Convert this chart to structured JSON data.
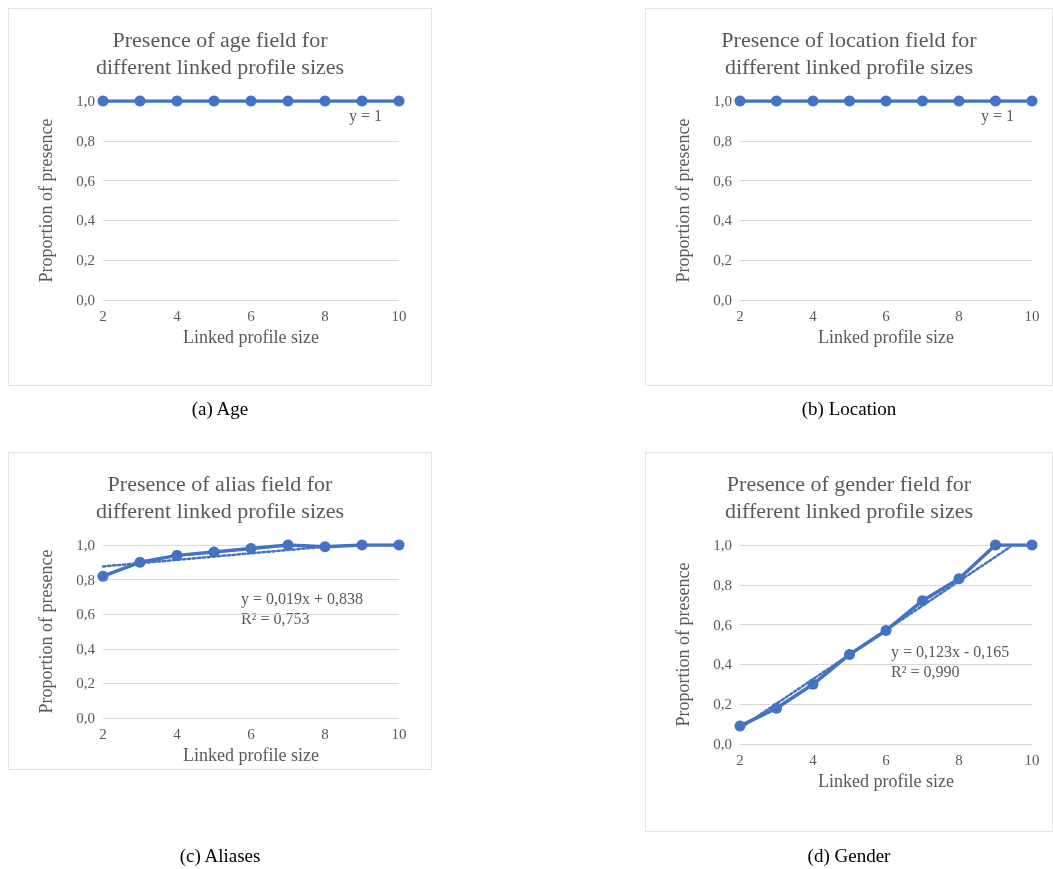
{
  "chart_data": [
    {
      "type": "line",
      "title": "Presence of age field for\ndifferent linked profile sizes",
      "xlabel": "Linked profile size",
      "ylabel": "Proportion of presence",
      "x": [
        2,
        3,
        4,
        5,
        6,
        7,
        8,
        9,
        10
      ],
      "series": [
        {
          "color": "#4472c4",
          "values": [
            1,
            1,
            1,
            1,
            1,
            1,
            1,
            1,
            1
          ]
        }
      ],
      "xlim": [
        2,
        10
      ],
      "xticks": [
        2,
        4,
        6,
        8,
        10
      ],
      "ylim": [
        0,
        1
      ],
      "yticks": [
        {
          "value": 0,
          "label": "0,0"
        },
        {
          "value": 0.2,
          "label": "0,2"
        },
        {
          "value": 0.4,
          "label": "0,4"
        },
        {
          "value": 0.6,
          "label": "0,6"
        },
        {
          "value": 0.8,
          "label": "0,8"
        },
        {
          "value": 1,
          "label": "1,0"
        }
      ],
      "grid": "y",
      "marker": "circle",
      "annotations": [
        "y = 1",
        "(a) Age"
      ]
    },
    {
      "type": "line",
      "title": "Presence of location field for\ndifferent linked profile sizes",
      "xlabel": "Linked profile size",
      "ylabel": "Proportion of presence",
      "x": [
        2,
        3,
        4,
        5,
        6,
        7,
        8,
        9,
        10
      ],
      "series": [
        {
          "color": "#4472c4",
          "values": [
            1,
            1,
            1,
            1,
            1,
            1,
            1,
            1,
            1
          ]
        }
      ],
      "xlim": [
        2,
        10
      ],
      "xticks": [
        2,
        4,
        6,
        8,
        10
      ],
      "ylim": [
        0,
        1
      ],
      "yticks": [
        {
          "value": 0,
          "label": "0,0"
        },
        {
          "value": 0.2,
          "label": "0,2"
        },
        {
          "value": 0.4,
          "label": "0,4"
        },
        {
          "value": 0.6,
          "label": "0,6"
        },
        {
          "value": 0.8,
          "label": "0,8"
        },
        {
          "value": 1,
          "label": "1,0"
        }
      ],
      "grid": "y",
      "marker": "circle",
      "annotations": [
        "y = 1",
        "(b) Location"
      ]
    },
    {
      "type": "line",
      "title": "Presence of alias field for\ndifferent linked profile sizes",
      "xlabel": "Linked profile size",
      "ylabel": "Proportion of presence",
      "x": [
        2,
        3,
        4,
        5,
        6,
        7,
        8,
        9,
        10
      ],
      "series": [
        {
          "color": "#4472c4",
          "values": [
            0.82,
            0.9,
            0.94,
            0.96,
            0.98,
            1,
            0.99,
            1,
            1
          ]
        },
        {
          "type": "line",
          "color": "#4472c4",
          "line_style": "dotted",
          "marker": "none",
          "x": [
            2,
            8
          ],
          "values": [
            0.876,
            0.99
          ]
        }
      ],
      "xlim": [
        2,
        10
      ],
      "xticks": [
        2,
        4,
        6,
        8,
        10
      ],
      "ylim": [
        0,
        1
      ],
      "yticks": [
        {
          "value": 0,
          "label": "0,0"
        },
        {
          "value": 0.2,
          "label": "0,2"
        },
        {
          "value": 0.4,
          "label": "0,4"
        },
        {
          "value": 0.6,
          "label": "0,6"
        },
        {
          "value": 0.8,
          "label": "0,8"
        },
        {
          "value": 1,
          "label": "1,0"
        }
      ],
      "grid": "y",
      "marker": "circle",
      "annotations": [
        "y = 0,019x + 0,838\nR² = 0,753",
        "(c) Aliases"
      ]
    },
    {
      "type": "line",
      "title": "Presence of gender field for\ndifferent linked profile sizes",
      "xlabel": "Linked profile size",
      "ylabel": "Proportion of presence",
      "x": [
        2,
        3,
        4,
        5,
        6,
        7,
        8,
        9,
        10
      ],
      "series": [
        {
          "color": "#4472c4",
          "values": [
            0.09,
            0.18,
            0.3,
            0.45,
            0.57,
            0.72,
            0.83,
            1,
            1
          ]
        },
        {
          "type": "line",
          "color": "#4472c4",
          "line_style": "dotted",
          "marker": "none",
          "x": [
            2,
            9.4
          ],
          "values": [
            0.08,
            0.99
          ]
        }
      ],
      "xlim": [
        2,
        10
      ],
      "xticks": [
        2,
        4,
        6,
        8,
        10
      ],
      "ylim": [
        0,
        1
      ],
      "yticks": [
        {
          "value": 0,
          "label": "0,0"
        },
        {
          "value": 0.2,
          "label": "0,2"
        },
        {
          "value": 0.4,
          "label": "0,4"
        },
        {
          "value": 0.6,
          "label": "0,6"
        },
        {
          "value": 0.8,
          "label": "0,8"
        },
        {
          "value": 1,
          "label": "1,0"
        }
      ],
      "grid": "y",
      "marker": "circle",
      "annotations": [
        "y = 0,123x - 0,165\nR² = 0,990",
        "(d) Gender"
      ]
    }
  ]
}
